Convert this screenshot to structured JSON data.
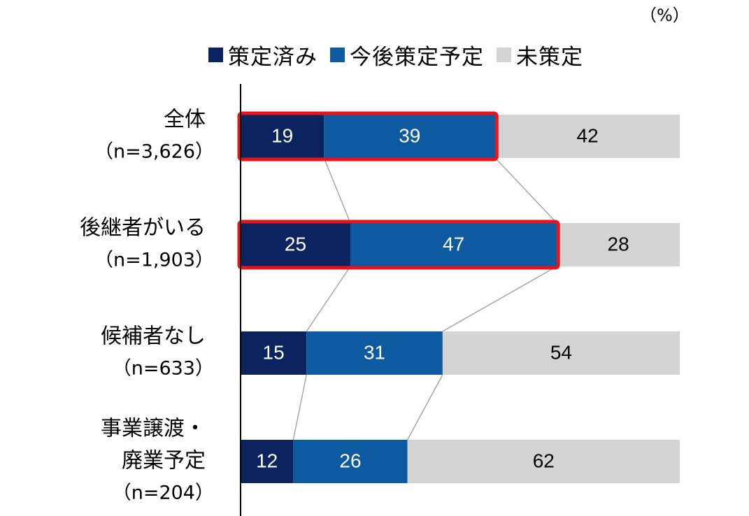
{
  "chart_data": {
    "type": "bar",
    "orientation": "horizontal",
    "stacked": true,
    "unit_label": "（%）",
    "categories": [
      {
        "label_lines": [
          "全体"
        ],
        "n": "（n=3,626）"
      },
      {
        "label_lines": [
          "後継者がいる"
        ],
        "n": "（n=1,903）"
      },
      {
        "label_lines": [
          "候補者なし"
        ],
        "n": "（n=633）"
      },
      {
        "label_lines": [
          "事業譲渡・",
          "廃業予定"
        ],
        "n": "（n=204）"
      }
    ],
    "series": [
      {
        "name": "策定済み",
        "color": "#0b2460",
        "values": [
          19,
          25,
          15,
          12
        ]
      },
      {
        "name": "今後策定予定",
        "color": "#0d5aa0",
        "values": [
          39,
          47,
          31,
          26
        ]
      },
      {
        "name": "未策定",
        "color": "#d4d4d4",
        "values": [
          42,
          28,
          54,
          62
        ]
      }
    ],
    "xlim": [
      0,
      100
    ],
    "value_label_colors": [
      "#ffffff",
      "#ffffff",
      "#000000"
    ],
    "highlighted_categories": [
      0,
      1
    ],
    "highlight_color": "#e8141c",
    "connector_color": "#a6a6a6"
  }
}
